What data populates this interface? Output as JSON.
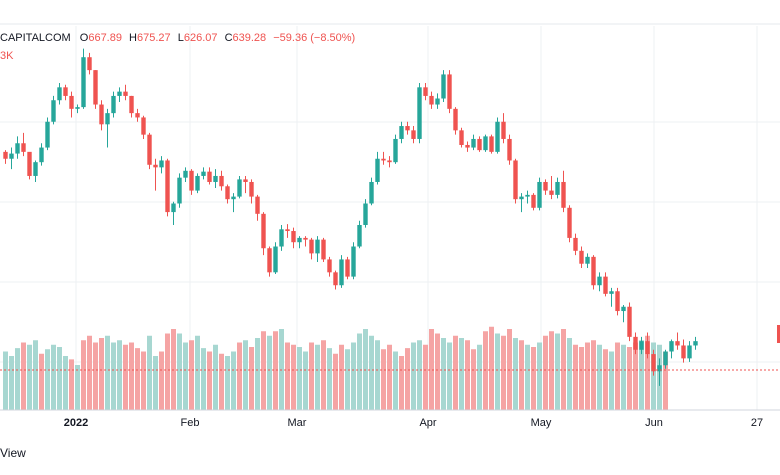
{
  "legend": {
    "symbol": "CAPITALCOM",
    "o_key": "O",
    "o_val": "667.89",
    "h_key": "H",
    "h_val": "675.27",
    "l_key": "L",
    "l_val": "626.07",
    "c_key": "C",
    "c_val": "639.28",
    "change": "−59.36 (−8.50%)",
    "volume_fragment": "3K"
  },
  "footer": {
    "view_label": "View"
  },
  "colors": {
    "up": "#26a69a",
    "down": "#ef5350",
    "vol_up": "#a7d7d1",
    "vol_down": "#f5a4a4",
    "grid": "#eef0f3"
  },
  "chart_data": {
    "type": "candlestick",
    "x_ticks": [
      "2022",
      "Feb",
      "Mar",
      "Apr",
      "May",
      "Jun",
      "27"
    ],
    "ylim": [
      580,
      1010
    ],
    "candles": [
      [
        880,
        882,
        866,
        872
      ],
      [
        872,
        885,
        860,
        878
      ],
      [
        878,
        898,
        872,
        890
      ],
      [
        890,
        902,
        875,
        880
      ],
      [
        880,
        878,
        848,
        852
      ],
      [
        852,
        870,
        845,
        868
      ],
      [
        868,
        890,
        864,
        885
      ],
      [
        885,
        920,
        882,
        915
      ],
      [
        915,
        945,
        912,
        940
      ],
      [
        940,
        960,
        935,
        955
      ],
      [
        955,
        958,
        940,
        945
      ],
      [
        945,
        950,
        920,
        930
      ],
      [
        930,
        935,
        925,
        932
      ],
      [
        932,
        1000,
        930,
        990
      ],
      [
        990,
        995,
        970,
        975
      ],
      [
        975,
        975,
        930,
        935
      ],
      [
        935,
        940,
        905,
        912
      ],
      [
        912,
        930,
        885,
        925
      ],
      [
        925,
        950,
        920,
        945
      ],
      [
        945,
        955,
        938,
        950
      ],
      [
        950,
        958,
        940,
        945
      ],
      [
        945,
        945,
        920,
        925
      ],
      [
        925,
        930,
        915,
        920
      ],
      [
        920,
        922,
        895,
        900
      ],
      [
        900,
        902,
        860,
        865
      ],
      [
        865,
        872,
        835,
        862
      ],
      [
        862,
        875,
        855,
        870
      ],
      [
        870,
        872,
        805,
        810
      ],
      [
        810,
        822,
        795,
        820
      ],
      [
        820,
        855,
        815,
        850
      ],
      [
        850,
        862,
        845,
        858
      ],
      [
        858,
        860,
        830,
        835
      ],
      [
        835,
        855,
        832,
        852
      ],
      [
        852,
        862,
        848,
        857
      ],
      [
        857,
        862,
        842,
        845
      ],
      [
        845,
        860,
        838,
        852
      ],
      [
        852,
        858,
        835,
        840
      ],
      [
        840,
        842,
        820,
        825
      ],
      [
        825,
        832,
        810,
        828
      ],
      [
        828,
        852,
        826,
        848
      ],
      [
        848,
        852,
        832,
        845
      ],
      [
        845,
        848,
        820,
        828
      ],
      [
        828,
        830,
        800,
        808
      ],
      [
        808,
        810,
        760,
        768
      ],
      [
        768,
        770,
        735,
        740
      ],
      [
        740,
        775,
        738,
        770
      ],
      [
        770,
        795,
        765,
        790
      ],
      [
        790,
        796,
        780,
        788
      ],
      [
        788,
        792,
        768,
        775
      ],
      [
        775,
        782,
        768,
        780
      ],
      [
        780,
        782,
        770,
        778
      ],
      [
        778,
        780,
        755,
        762
      ],
      [
        762,
        782,
        752,
        778
      ],
      [
        778,
        780,
        752,
        755
      ],
      [
        755,
        758,
        735,
        740
      ],
      [
        740,
        742,
        720,
        725
      ],
      [
        725,
        760,
        722,
        755
      ],
      [
        755,
        758,
        732,
        735
      ],
      [
        735,
        775,
        732,
        770
      ],
      [
        770,
        800,
        768,
        795
      ],
      [
        795,
        825,
        792,
        820
      ],
      [
        820,
        850,
        818,
        845
      ],
      [
        845,
        880,
        842,
        872
      ],
      [
        872,
        880,
        865,
        870
      ],
      [
        870,
        875,
        862,
        868
      ],
      [
        868,
        900,
        866,
        895
      ],
      [
        895,
        915,
        890,
        910
      ],
      [
        910,
        915,
        900,
        905
      ],
      [
        905,
        910,
        890,
        895
      ],
      [
        895,
        960,
        890,
        955
      ],
      [
        955,
        960,
        940,
        945
      ],
      [
        945,
        950,
        930,
        935
      ],
      [
        935,
        948,
        930,
        942
      ],
      [
        942,
        975,
        938,
        970
      ],
      [
        970,
        975,
        925,
        930
      ],
      [
        930,
        932,
        900,
        905
      ],
      [
        905,
        908,
        885,
        888
      ],
      [
        888,
        892,
        880,
        885
      ],
      [
        885,
        900,
        882,
        895
      ],
      [
        895,
        898,
        880,
        882
      ],
      [
        882,
        900,
        880,
        898
      ],
      [
        898,
        900,
        878,
        880
      ],
      [
        880,
        920,
        878,
        915
      ],
      [
        915,
        925,
        890,
        895
      ],
      [
        895,
        900,
        865,
        870
      ],
      [
        870,
        872,
        820,
        825
      ],
      [
        825,
        832,
        810,
        828
      ],
      [
        828,
        835,
        820,
        830
      ],
      [
        830,
        832,
        812,
        815
      ],
      [
        815,
        850,
        812,
        845
      ],
      [
        845,
        848,
        830,
        835
      ],
      [
        835,
        852,
        825,
        830
      ],
      [
        830,
        850,
        826,
        845
      ],
      [
        845,
        858,
        810,
        815
      ],
      [
        815,
        818,
        775,
        780
      ],
      [
        780,
        785,
        760,
        765
      ],
      [
        765,
        770,
        745,
        750
      ],
      [
        750,
        762,
        745,
        758
      ],
      [
        758,
        760,
        720,
        725
      ],
      [
        725,
        740,
        718,
        735
      ],
      [
        735,
        740,
        712,
        715
      ],
      [
        715,
        722,
        700,
        718
      ],
      [
        718,
        722,
        690,
        695
      ],
      [
        695,
        702,
        682,
        700
      ],
      [
        700,
        705,
        660,
        665
      ],
      [
        665,
        670,
        645,
        650
      ],
      [
        650,
        665,
        645,
        660
      ],
      [
        660,
        670,
        640,
        645
      ],
      [
        645,
        650,
        620,
        625
      ],
      [
        625,
        640,
        608,
        632
      ],
      [
        632,
        650,
        628,
        648
      ],
      [
        648,
        662,
        640,
        660
      ],
      [
        660,
        670,
        650,
        655
      ],
      [
        655,
        662,
        635,
        640
      ],
      [
        640,
        660,
        636,
        655
      ],
      [
        655,
        665,
        650,
        660
      ]
    ],
    "volumes": [
      [
        52,
        1
      ],
      [
        48,
        1
      ],
      [
        55,
        1
      ],
      [
        60,
        0
      ],
      [
        58,
        1
      ],
      [
        62,
        1
      ],
      [
        50,
        0
      ],
      [
        54,
        1
      ],
      [
        58,
        1
      ],
      [
        56,
        1
      ],
      [
        48,
        1
      ],
      [
        45,
        0
      ],
      [
        40,
        1
      ],
      [
        62,
        0
      ],
      [
        66,
        0
      ],
      [
        60,
        0
      ],
      [
        64,
        0
      ],
      [
        66,
        1
      ],
      [
        60,
        1
      ],
      [
        62,
        1
      ],
      [
        58,
        0
      ],
      [
        60,
        0
      ],
      [
        55,
        0
      ],
      [
        52,
        0
      ],
      [
        66,
        1
      ],
      [
        48,
        1
      ],
      [
        52,
        0
      ],
      [
        68,
        0
      ],
      [
        72,
        0
      ],
      [
        68,
        1
      ],
      [
        60,
        1
      ],
      [
        62,
        0
      ],
      [
        66,
        1
      ],
      [
        55,
        1
      ],
      [
        52,
        0
      ],
      [
        58,
        1
      ],
      [
        50,
        0
      ],
      [
        48,
        1
      ],
      [
        52,
        1
      ],
      [
        60,
        0
      ],
      [
        62,
        1
      ],
      [
        56,
        0
      ],
      [
        64,
        1
      ],
      [
        70,
        0
      ],
      [
        66,
        1
      ],
      [
        70,
        0
      ],
      [
        72,
        1
      ],
      [
        60,
        0
      ],
      [
        58,
        0
      ],
      [
        56,
        1
      ],
      [
        52,
        1
      ],
      [
        60,
        0
      ],
      [
        58,
        1
      ],
      [
        62,
        0
      ],
      [
        55,
        1
      ],
      [
        50,
        0
      ],
      [
        58,
        0
      ],
      [
        54,
        1
      ],
      [
        60,
        1
      ],
      [
        68,
        1
      ],
      [
        72,
        1
      ],
      [
        66,
        1
      ],
      [
        62,
        1
      ],
      [
        54,
        0
      ],
      [
        58,
        0
      ],
      [
        52,
        1
      ],
      [
        48,
        0
      ],
      [
        55,
        0
      ],
      [
        60,
        1
      ],
      [
        62,
        1
      ],
      [
        58,
        0
      ],
      [
        72,
        0
      ],
      [
        68,
        0
      ],
      [
        64,
        1
      ],
      [
        60,
        1
      ],
      [
        66,
        0
      ],
      [
        64,
        1
      ],
      [
        62,
        0
      ],
      [
        54,
        0
      ],
      [
        58,
        1
      ],
      [
        70,
        0
      ],
      [
        74,
        0
      ],
      [
        68,
        1
      ],
      [
        66,
        0
      ],
      [
        72,
        0
      ],
      [
        64,
        1
      ],
      [
        62,
        0
      ],
      [
        58,
        1
      ],
      [
        56,
        0
      ],
      [
        60,
        1
      ],
      [
        66,
        0
      ],
      [
        70,
        0
      ],
      [
        68,
        1
      ],
      [
        72,
        0
      ],
      [
        64,
        1
      ],
      [
        58,
        0
      ],
      [
        56,
        0
      ],
      [
        60,
        0
      ],
      [
        62,
        0
      ],
      [
        58,
        1
      ],
      [
        54,
        0
      ],
      [
        52,
        1
      ],
      [
        60,
        0
      ],
      [
        58,
        1
      ],
      [
        56,
        0
      ],
      [
        60,
        0
      ],
      [
        62,
        1
      ],
      [
        66,
        0
      ],
      [
        60,
        1
      ],
      [
        58,
        1
      ],
      [
        52,
        0
      ]
    ]
  }
}
